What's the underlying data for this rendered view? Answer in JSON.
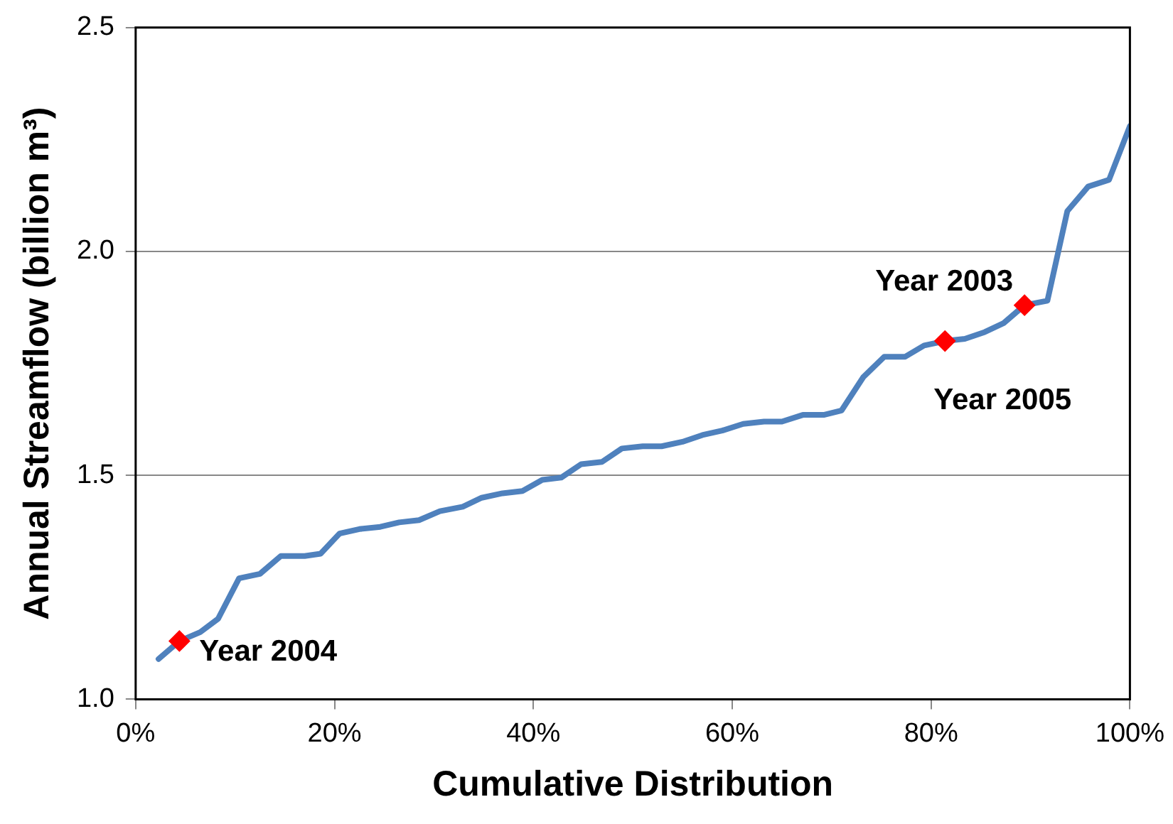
{
  "chart_data": {
    "type": "line",
    "xlabel": "Cumulative Distribution",
    "ylabel": "Annual Streamflow (billion m³)",
    "xlim": [
      0,
      100
    ],
    "xticks": [
      {
        "value": 0,
        "label": "0%"
      },
      {
        "value": 20,
        "label": "20%"
      },
      {
        "value": 40,
        "label": "40%"
      },
      {
        "value": 60,
        "label": "60%"
      },
      {
        "value": 80,
        "label": "80%"
      },
      {
        "value": 100,
        "label": "100%"
      }
    ],
    "ylim": [
      1.0,
      2.5
    ],
    "yticks": [
      {
        "value": 1.0,
        "label": "1.0"
      },
      {
        "value": 1.5,
        "label": "1.5"
      },
      {
        "value": 2.0,
        "label": "2.0"
      },
      {
        "value": 2.5,
        "label": "2.5"
      }
    ],
    "grid": "y",
    "legend": false,
    "marker": "none",
    "line_style": "solid",
    "series": [
      {
        "color": "#4f81bd",
        "x": [
          2.3,
          4.4,
          6.5,
          8.3,
          10.4,
          12.5,
          14.6,
          17.0,
          18.6,
          20.5,
          22.5,
          24.6,
          26.5,
          28.5,
          30.6,
          32.9,
          34.8,
          36.9,
          38.9,
          40.9,
          42.8,
          44.8,
          46.9,
          48.9,
          51.0,
          52.9,
          55.0,
          57.0,
          59.0,
          61.1,
          63.2,
          65.0,
          67.1,
          69.2,
          71.0,
          73.2,
          75.3,
          77.4,
          79.3,
          81.4,
          83.4,
          85.4,
          87.3,
          89.4,
          91.7,
          93.7,
          95.8,
          97.9,
          100
        ],
        "values": [
          1.09,
          1.13,
          1.15,
          1.18,
          1.27,
          1.28,
          1.32,
          1.32,
          1.325,
          1.37,
          1.38,
          1.385,
          1.395,
          1.4,
          1.42,
          1.43,
          1.45,
          1.46,
          1.465,
          1.49,
          1.495,
          1.525,
          1.53,
          1.56,
          1.565,
          1.565,
          1.575,
          1.59,
          1.6,
          1.615,
          1.62,
          1.62,
          1.635,
          1.635,
          1.645,
          1.72,
          1.765,
          1.765,
          1.79,
          1.8,
          1.805,
          1.82,
          1.84,
          1.88,
          1.89,
          2.09,
          2.145,
          2.16,
          2.28
        ]
      },
      {
        "type": "scatter",
        "color": "#ff0000",
        "marker": "diamond",
        "x": [
          4.4,
          81.4,
          89.4
        ],
        "values": [
          1.13,
          1.8,
          1.88
        ]
      }
    ],
    "annotations": [
      {
        "text": "Year 2004",
        "x": 4.4,
        "y": 1.13
      },
      {
        "text": "Year 2005",
        "x": 81.4,
        "y": 1.8
      },
      {
        "text": "Year 2003",
        "x": 89.4,
        "y": 1.88
      }
    ]
  }
}
